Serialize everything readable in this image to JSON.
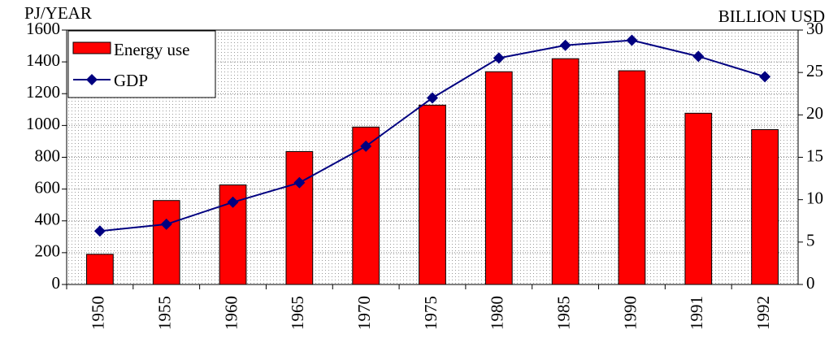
{
  "chart_data": {
    "type": "bar-line",
    "y_label": "PJ/YEAR",
    "y2_label": "BILLION USD",
    "categories": [
      "1950",
      "1955",
      "1960",
      "1965",
      "1970",
      "1975",
      "1980",
      "1985",
      "1990",
      "1991",
      "1992"
    ],
    "series": [
      {
        "name": "Energy use",
        "type": "bar",
        "color": "#ff0000",
        "values": [
          190,
          528,
          626,
          836,
          990,
          1128,
          1338,
          1420,
          1344,
          1077,
          974
        ]
      },
      {
        "name": "GDP",
        "type": "line",
        "axis": "y2",
        "color": "#000080",
        "values": [
          6.3,
          7.1,
          9.7,
          12.0,
          16.3,
          22.0,
          26.7,
          28.2,
          28.8,
          26.9,
          24.5
        ]
      }
    ],
    "ylim": [
      0,
      1600
    ],
    "yticks": [
      0,
      200,
      400,
      600,
      800,
      1000,
      1200,
      1400,
      1600
    ],
    "y2lim": [
      0,
      30
    ],
    "y2ticks": [
      0,
      5,
      10,
      15,
      20,
      25,
      30
    ],
    "grid": true,
    "legend": "top-left"
  }
}
